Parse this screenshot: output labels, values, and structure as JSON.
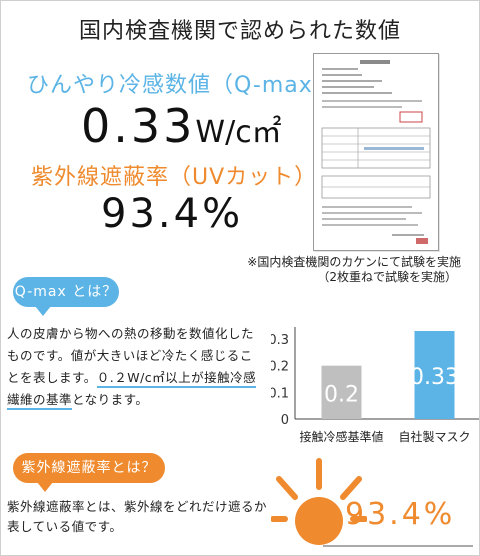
{
  "title": "国内検査機関で認められた数値",
  "qmax": {
    "label": "ひんやり冷感数値（Q-max）",
    "value": "0.33",
    "unit": "W/c㎡"
  },
  "uv": {
    "label": "紫外線遮蔽率（UVカット）",
    "value": "93.4%"
  },
  "note": {
    "line1": "※国内検査機関のカケンにて試験を実施",
    "line2": "（2枚重ねで試験を実施）"
  },
  "qmax_section": {
    "heading": "Q-max とは？",
    "text_before": "人の皮膚から物への熱の移動を数値化したものです。値が大きいほど冷たく感じることを表します。",
    "highlight": "０.２W/c㎡以上が接触冷感繊維の基準",
    "text_after": "となります。"
  },
  "uv_section": {
    "heading": "紫外線遮蔽率とは？",
    "text": "紫外線遮蔽率とは、紫外線をどれだけ遮るか表している値です。",
    "big_value": "93.4%"
  },
  "chart_data": {
    "type": "bar",
    "categories": [
      "接触冷感基準値",
      "自社製マスク"
    ],
    "values": [
      0.2,
      0.33
    ],
    "value_labels": [
      "0.2",
      "0.33"
    ],
    "ylim": [
      0,
      0.33
    ],
    "yticks": [
      "0",
      "0.1",
      "0.2",
      "0.3"
    ],
    "ytick_values": [
      0,
      0.1,
      0.2,
      0.3
    ],
    "colors": [
      "#bfbfbf",
      "#5bb4e5"
    ],
    "grid": false
  },
  "colors": {
    "accent_blue": "#5bb4e5",
    "accent_orange": "#ef8a2e",
    "bar_gray": "#bfbfbf"
  },
  "icons": {
    "sun": "sun-icon",
    "certificate": "certificate-document"
  }
}
